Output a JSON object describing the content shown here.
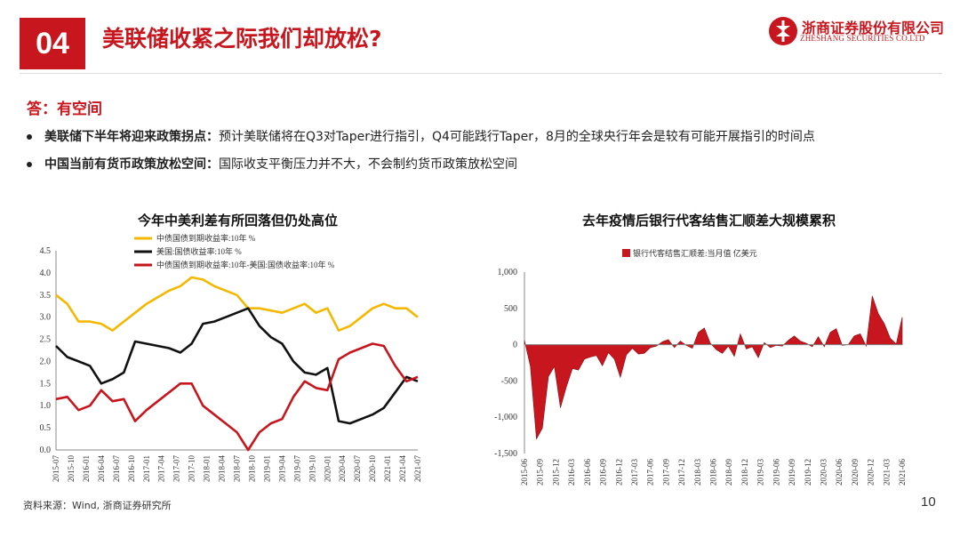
{
  "header": {
    "section_number": "04",
    "title": "美联储收紧之际我们却放松?",
    "logo_cn": "浙商证券股份有限公司",
    "logo_en": "ZHESHANG SECURITIES CO.LTD"
  },
  "answer": "答：有空间",
  "bullets": [
    {
      "bold": "美联储下半年将迎来政策拐点：",
      "text": "预计美联储将在Q3对Taper进行指引，Q4可能践行Taper，8月的全球央行年会是较有可能开展指引的时间点"
    },
    {
      "bold": "中国当前有货币政策放松空间：",
      "text": "国际收支平衡压力并不大，不会制约货币政策放松空间"
    }
  ],
  "source": "资料来源：Wind, 浙商证券研究所",
  "page_number": "10",
  "chart_data": [
    {
      "type": "line",
      "title": "今年中美利差有所回落但仍处高位",
      "ylim": [
        0,
        4.5
      ],
      "yticks": [
        "0.0",
        "0.5",
        "1.0",
        "1.5",
        "2.0",
        "2.5",
        "3.0",
        "3.5",
        "4.0",
        "4.5"
      ],
      "xticks": [
        "2015-07",
        "2015-10",
        "2016-01",
        "2016-04",
        "2016-07",
        "2016-10",
        "2017-01",
        "2017-04",
        "2017-07",
        "2017-10",
        "2018-01",
        "2018-04",
        "2018-07",
        "2018-10",
        "2019-01",
        "2019-04",
        "2019-07",
        "2019-10",
        "2020-01",
        "2020-04",
        "2020-07",
        "2020-10",
        "2021-01",
        "2021-04",
        "2021-07"
      ],
      "legend": "top-left",
      "series": [
        {
          "name": "中债国债到期收益率:10年 %",
          "color": "#f5b800",
          "values": [
            3.5,
            3.3,
            2.9,
            2.9,
            2.85,
            2.7,
            2.9,
            3.1,
            3.3,
            3.45,
            3.6,
            3.7,
            3.9,
            3.85,
            3.7,
            3.6,
            3.5,
            3.2,
            3.2,
            3.15,
            3.1,
            3.2,
            3.3,
            3.1,
            3.2,
            2.7,
            2.8,
            3.0,
            3.2,
            3.3,
            3.2,
            3.2,
            3.0
          ]
        },
        {
          "name": "美国:国债收益率:10年 %",
          "color": "#111111",
          "values": [
            2.35,
            2.1,
            2.0,
            1.9,
            1.5,
            1.6,
            1.75,
            2.45,
            2.4,
            2.35,
            2.3,
            2.2,
            2.4,
            2.85,
            2.9,
            3.0,
            3.1,
            3.2,
            2.8,
            2.55,
            2.4,
            2.0,
            1.75,
            1.7,
            1.85,
            0.65,
            0.6,
            0.7,
            0.8,
            0.95,
            1.3,
            1.65,
            1.55
          ]
        },
        {
          "name": "中债国债到期收益率:10年-美国:国债收益率:10年 %",
          "color": "#c8161e",
          "values": [
            1.15,
            1.2,
            0.9,
            1.0,
            1.35,
            1.1,
            1.15,
            0.65,
            0.9,
            1.1,
            1.3,
            1.5,
            1.5,
            1.0,
            0.8,
            0.6,
            0.4,
            0.0,
            0.4,
            0.6,
            0.7,
            1.2,
            1.55,
            1.4,
            1.35,
            2.05,
            2.2,
            2.3,
            2.4,
            2.35,
            1.9,
            1.55,
            1.65
          ]
        }
      ]
    },
    {
      "type": "area",
      "title": "去年疫情后银行代客结售汇顺差大规模累积",
      "ylim": [
        -1500,
        1000
      ],
      "yticks": [
        "1,000",
        "500",
        "0",
        "-500",
        "-1,000",
        "-1,500"
      ],
      "xticks": [
        "2015-06",
        "2015-09",
        "2015-12",
        "2016-03",
        "2016-06",
        "2016-09",
        "2016-12",
        "2017-03",
        "2017-06",
        "2017-09",
        "2017-12",
        "2018-03",
        "2018-06",
        "2018-09",
        "2018-12",
        "2019-03",
        "2019-06",
        "2019-09",
        "2019-12",
        "2020-03",
        "2020-06",
        "2020-09",
        "2020-12",
        "2021-03",
        "2021-06"
      ],
      "legend": "top-left",
      "series": [
        {
          "name": "银行代客结售汇顺差:当月值 亿美元",
          "color": "#c8161e",
          "values": [
            60,
            -300,
            -1300,
            -1150,
            -440,
            -300,
            -870,
            -580,
            -330,
            -350,
            -200,
            -170,
            -150,
            -290,
            -110,
            -200,
            -450,
            -140,
            -50,
            -130,
            -120,
            -40,
            -20,
            40,
            70,
            -40,
            50,
            -10,
            -50,
            170,
            230,
            20,
            -70,
            -120,
            -20,
            -160,
            150,
            -60,
            -30,
            -180,
            30,
            -40,
            -10,
            -20,
            60,
            120,
            50,
            20,
            -30,
            110,
            -30,
            170,
            220,
            -10,
            0,
            120,
            150,
            -20,
            670,
            430,
            290,
            90,
            10,
            380
          ]
        }
      ]
    }
  ]
}
